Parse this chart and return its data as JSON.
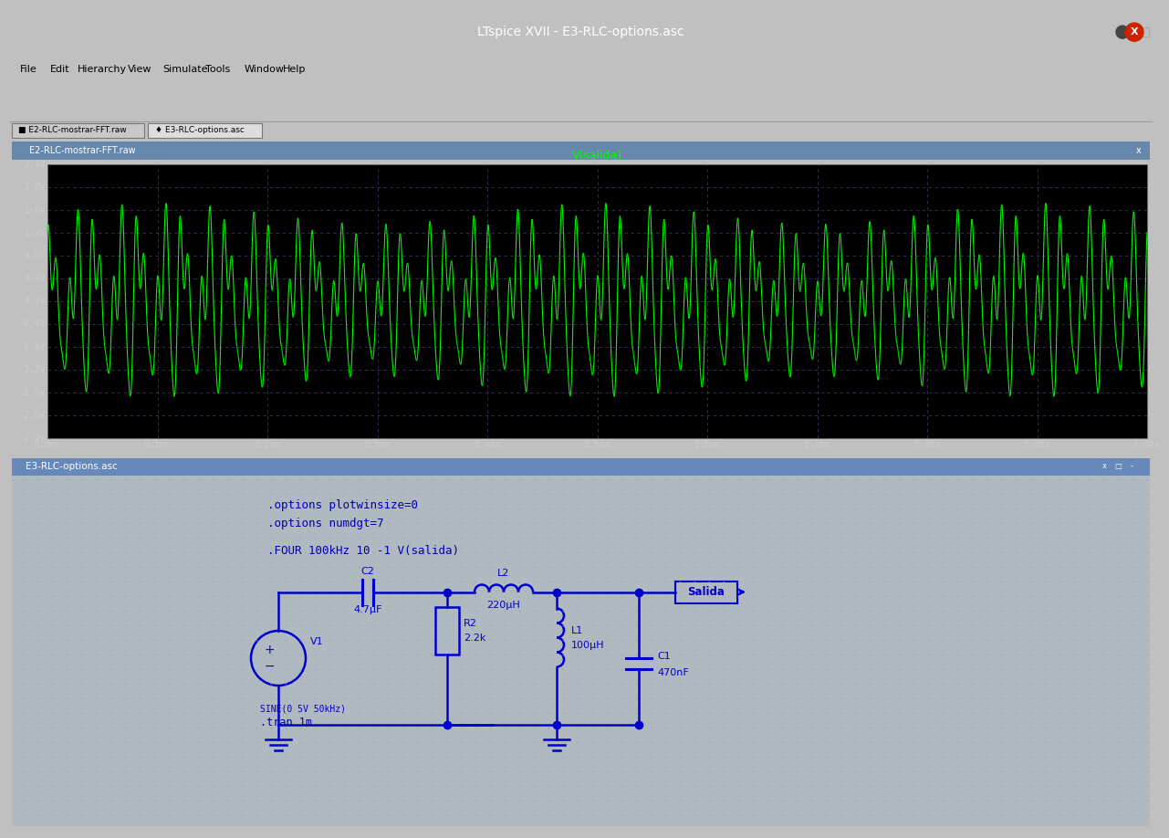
{
  "title_bar": "LTspice XVII - E3-RLC-options.asc",
  "title_bar_bg": "#2d2d2d",
  "title_bar_fg": "#ffffff",
  "menu_items": [
    "File",
    "Edit",
    "Hierarchy",
    "View",
    "Simulate",
    "Tools",
    "Window",
    "Help"
  ],
  "tab1": "E2-RLC-mostrar-FFT.raw",
  "tab2": "E3-RLC-options.asc",
  "plot_title": "V(salida)",
  "plot_title_color": "#00ff00",
  "waveform_color": "#00ff00",
  "y_ticks": [
    "2.4V",
    "2.0V",
    "1.6V",
    "1.2V",
    "0.8V",
    "0.4V",
    "0.0V",
    "-0.4V",
    "-0.8V",
    "-1.2V",
    "-1.6V",
    "-2.0V",
    "-2.4V"
  ],
  "y_values": [
    2.4,
    2.0,
    1.6,
    1.2,
    0.8,
    0.4,
    0.0,
    -0.4,
    -0.8,
    -1.2,
    -1.6,
    -2.0,
    -2.4
  ],
  "x_ticks": [
    "0.0ms",
    "0.1ms",
    "0.2ms",
    "0.3ms",
    "0.4ms",
    "0.5ms",
    "0.6ms",
    "0.7ms",
    "0.8ms",
    "0.9ms",
    "1.0ms"
  ],
  "x_values": [
    0.0,
    0.1,
    0.2,
    0.3,
    0.4,
    0.5,
    0.6,
    0.7,
    0.8,
    0.9,
    1.0
  ],
  "schematic_title_bar": "E3-RLC-options.asc",
  "options_text1": ".options plotwinsize=0",
  "options_text2": ".options numdgt=7",
  "four_text": ".FOUR 100kHz 10 -1 V(salida)",
  "tran_text": ".tran 1m",
  "sine_text": "SINE(0 5V 50kHz)"
}
